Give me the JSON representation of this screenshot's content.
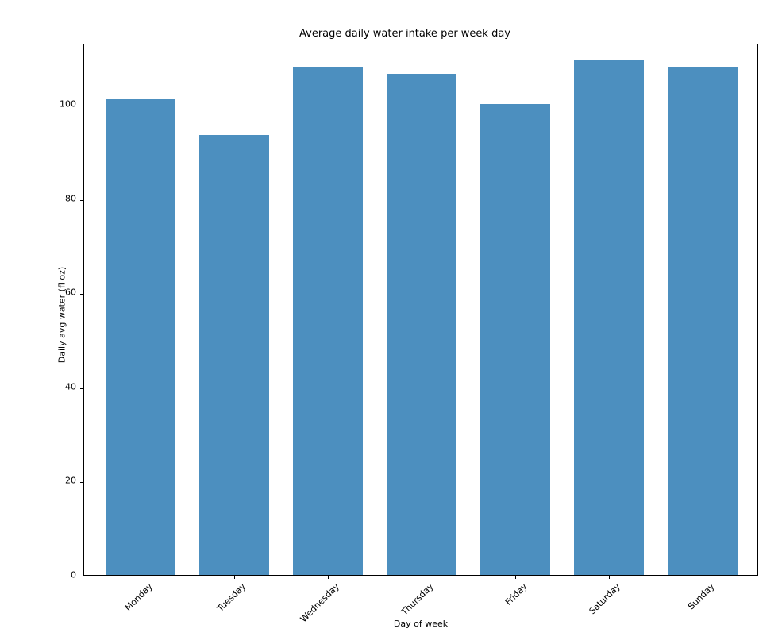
{
  "chart": {
    "type": "bar",
    "title": "Average daily water intake per week day",
    "title_fontsize": 13,
    "xlabel": "Day of week",
    "ylabel": "Daily avg water (fl oz)",
    "label_fontsize": 11,
    "tick_fontsize": 11,
    "categories": [
      "Monday",
      "Tuesday",
      "Wednesday",
      "Thursday",
      "Friday",
      "Saturday",
      "Sunday"
    ],
    "values": [
      101,
      93.5,
      108,
      106.5,
      100,
      109.5,
      108
    ],
    "bar_color": "#4c8fbf",
    "background_color": "#ffffff",
    "border_color": "#000000",
    "ylim": [
      0,
      113
    ],
    "yticks": [
      0,
      20,
      40,
      60,
      80,
      100
    ],
    "bar_width_ratio": 0.75,
    "x_tick_rotation": -45
  }
}
